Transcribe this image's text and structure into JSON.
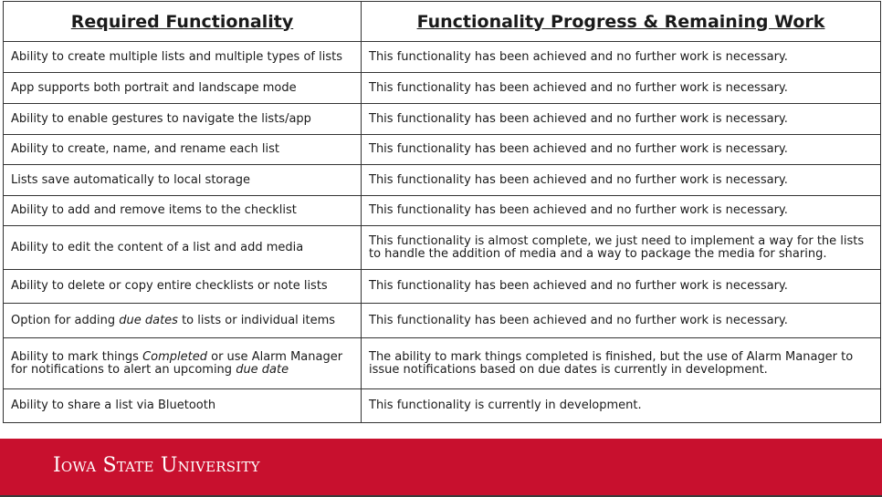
{
  "table": {
    "headers": [
      "Required Functionality",
      "Functionality Progress & Remaining Work"
    ],
    "rows": [
      {
        "requirement": [
          "Ability to create multiple lists and multiple types of lists"
        ],
        "progress": "This functionality has been achieved and no further work is necessary."
      },
      {
        "requirement": [
          "App supports both portrait and landscape mode"
        ],
        "progress": "This functionality has been achieved and no further work is necessary."
      },
      {
        "requirement": [
          "Ability to enable gestures to navigate the lists/app"
        ],
        "progress": "This functionality has been achieved and no further work is necessary."
      },
      {
        "requirement": [
          "Ability to create, name, and rename each list"
        ],
        "progress": "This functionality has been achieved and no further work is necessary."
      },
      {
        "requirement": [
          "Lists save automatically to local storage"
        ],
        "progress": "This functionality has been achieved and no further work is necessary."
      },
      {
        "requirement": [
          "Ability to add and remove items to the checklist"
        ],
        "progress": "This functionality has been achieved and no further work is necessary."
      },
      {
        "requirement": [
          "Ability to edit the content of a list and add media"
        ],
        "progress": "This functionality is almost complete, we just need to implement a way for the lists to handle the addition of media and a way to package the media for sharing."
      },
      {
        "requirement": [
          "Ability to delete or copy entire checklists or note lists"
        ],
        "progress": "This functionality has been achieved and no further work is necessary."
      },
      {
        "requirement": [
          "Option for adding ",
          "due dates",
          " to lists or individual items"
        ],
        "progress": "This functionality has been achieved and no further work is necessary."
      },
      {
        "requirement": [
          "Ability to mark things ",
          "Completed",
          " or use Alarm Manager for notifications to alert an upcoming ",
          "due date"
        ],
        "progress": "The ability to mark things completed is finished, but the use of Alarm Manager to issue notifications based on due dates is currently in development."
      },
      {
        "requirement": [
          "Ability to share a list via Bluetooth"
        ],
        "progress": "This functionality is currently in development."
      }
    ]
  },
  "footer": {
    "university": "Iowa State University",
    "brand_color": "#c8102e"
  }
}
